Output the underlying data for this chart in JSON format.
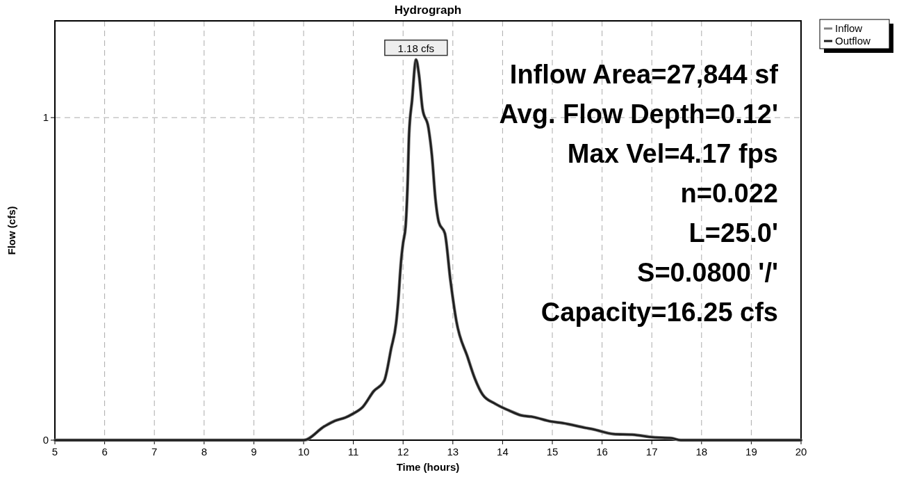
{
  "chart_data": {
    "type": "line",
    "title": "Hydrograph",
    "xlabel": "Time  (hours)",
    "ylabel": "Flow  (cfs)",
    "xlim": [
      5,
      20
    ],
    "xticks": [
      5,
      6,
      7,
      8,
      9,
      10,
      11,
      12,
      13,
      14,
      15,
      16,
      17,
      18,
      19,
      20
    ],
    "ylim": [
      0,
      1.3
    ],
    "yticks": [
      0,
      1
    ],
    "grid": true,
    "legend": "top right",
    "line_style": "solid",
    "marker": "none",
    "series": [
      {
        "name": "Inflow",
        "color": "#808080",
        "x": [
          5,
          10.0,
          10.42,
          10.63,
          10.84,
          10.98,
          11.19,
          11.41,
          11.62,
          11.76,
          11.86,
          11.9,
          11.96,
          12.0,
          12.05,
          12.09,
          12.12,
          12.18,
          12.26,
          12.32,
          12.39,
          12.51,
          12.58,
          12.65,
          12.72,
          12.84,
          12.95,
          13.07,
          13.3,
          13.44,
          13.6,
          13.85,
          14.13,
          14.37,
          14.61,
          14.97,
          15.21,
          15.67,
          15.81,
          16.23,
          16.61,
          17.03,
          17.4,
          17.58,
          20
        ],
        "values": [
          0,
          0,
          0.043,
          0.06,
          0.07,
          0.081,
          0.103,
          0.152,
          0.184,
          0.284,
          0.363,
          0.427,
          0.556,
          0.611,
          0.662,
          0.79,
          0.947,
          1.053,
          1.18,
          1.132,
          1.028,
          0.968,
          0.882,
          0.748,
          0.675,
          0.641,
          0.498,
          0.37,
          0.256,
          0.192,
          0.141,
          0.113,
          0.092,
          0.077,
          0.072,
          0.058,
          0.053,
          0.038,
          0.034,
          0.019,
          0.017,
          0.009,
          0.006,
          0,
          0
        ]
      },
      {
        "name": "Outflow",
        "color": "#1e1e1e",
        "x": [
          5,
          10.0,
          10.42,
          10.63,
          10.84,
          10.98,
          11.19,
          11.41,
          11.62,
          11.76,
          11.86,
          11.9,
          11.96,
          12.0,
          12.05,
          12.09,
          12.12,
          12.18,
          12.26,
          12.32,
          12.39,
          12.51,
          12.58,
          12.65,
          12.72,
          12.84,
          12.95,
          13.07,
          13.3,
          13.44,
          13.6,
          13.85,
          14.13,
          14.37,
          14.61,
          14.97,
          15.21,
          15.67,
          15.81,
          16.23,
          16.61,
          17.03,
          17.4,
          17.58,
          20
        ],
        "values": [
          0,
          0,
          0.043,
          0.06,
          0.07,
          0.081,
          0.103,
          0.152,
          0.184,
          0.284,
          0.363,
          0.427,
          0.556,
          0.611,
          0.662,
          0.79,
          0.947,
          1.053,
          1.18,
          1.132,
          1.028,
          0.968,
          0.882,
          0.748,
          0.675,
          0.641,
          0.498,
          0.37,
          0.256,
          0.192,
          0.141,
          0.113,
          0.092,
          0.077,
          0.072,
          0.058,
          0.053,
          0.038,
          0.034,
          0.019,
          0.017,
          0.009,
          0.006,
          0,
          0
        ]
      }
    ],
    "annotations": [
      {
        "text": "1.18 cfs",
        "x": 12.26,
        "y": 1.18
      },
      "Inflow Area=27,844 sf",
      "Avg. Flow Depth=0.12'",
      "Max Vel=4.17 fps",
      "n=0.022",
      "L=25.0'",
      "S=0.0800 '/'",
      "Capacity=16.25 cfs"
    ]
  }
}
